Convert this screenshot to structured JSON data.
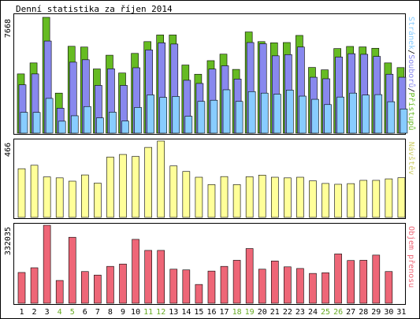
{
  "title": "Denní statistika za říjen 2014",
  "colors": {
    "background": "#ffffff",
    "panel_border": "#000000",
    "hits": "#66bb22",
    "files": "#8888ee",
    "pages": "#88ccff",
    "visits": "#ffff99",
    "kbytes": "#ee6677",
    "weekend_label": "#66aa22",
    "weekday_label": "#000000"
  },
  "chart_data": [
    {
      "type": "bar",
      "panel": "top",
      "ymax_label": "7668",
      "ylim": [
        0,
        7668
      ],
      "legend": {
        "pages": "Stránek",
        "files": "Souborů",
        "hits": "Přístupů",
        "sep": "/"
      },
      "categories": [
        "1",
        "2",
        "3",
        "4",
        "5",
        "6",
        "7",
        "8",
        "9",
        "10",
        "11",
        "12",
        "13",
        "14",
        "15",
        "16",
        "17",
        "18",
        "19",
        "20",
        "21",
        "22",
        "23",
        "24",
        "25",
        "26",
        "27",
        "28",
        "29",
        "30",
        "31"
      ],
      "weekend": [
        "4",
        "5",
        "11",
        "12",
        "18",
        "19",
        "25",
        "26"
      ],
      "series": [
        {
          "key": "hits",
          "values": [
            3920,
            4650,
            7668,
            2650,
            5750,
            5700,
            4250,
            5160,
            3980,
            5280,
            6060,
            6500,
            6500,
            4510,
            3900,
            4800,
            5230,
            4220,
            6700,
            6060,
            5980,
            6000,
            6470,
            4350,
            4190,
            5600,
            5740,
            5710,
            5620,
            4650,
            4340
          ]
        },
        {
          "key": "files",
          "values": [
            3200,
            3920,
            6100,
            1650,
            4700,
            4860,
            3160,
            4260,
            3160,
            4330,
            5510,
            5980,
            5900,
            3500,
            3290,
            4240,
            4460,
            3580,
            6000,
            5920,
            5120,
            5200,
            5700,
            3700,
            3600,
            5040,
            5260,
            5220,
            5080,
            3900,
            3700
          ]
        },
        {
          "key": "pages",
          "values": [
            1380,
            1370,
            2300,
            790,
            1150,
            1760,
            1010,
            1390,
            800,
            1700,
            2530,
            2370,
            2430,
            1120,
            2100,
            2180,
            2870,
            2100,
            2750,
            2650,
            2580,
            2850,
            2450,
            2240,
            1890,
            2390,
            2650,
            2520,
            2550,
            2080,
            1600
          ]
        }
      ]
    },
    {
      "type": "bar",
      "panel": "middle",
      "ymax_label": "466",
      "ylim": [
        0,
        466
      ],
      "legend": {
        "visits": "Návštěv"
      },
      "categories": [
        "1",
        "2",
        "3",
        "4",
        "5",
        "6",
        "7",
        "8",
        "9",
        "10",
        "11",
        "12",
        "13",
        "14",
        "15",
        "16",
        "17",
        "18",
        "19",
        "20",
        "21",
        "22",
        "23",
        "24",
        "25",
        "26",
        "27",
        "28",
        "29",
        "30",
        "31"
      ],
      "series": [
        {
          "key": "visits",
          "values": [
            297,
            318,
            247,
            241,
            221,
            259,
            209,
            368,
            384,
            372,
            427,
            466,
            314,
            280,
            245,
            200,
            249,
            200,
            248,
            258,
            245,
            241,
            245,
            223,
            207,
            202,
            206,
            226,
            226,
            235,
            242
          ]
        }
      ]
    },
    {
      "type": "bar",
      "panel": "bottom",
      "ymax_label": "332035",
      "ylim": [
        0,
        332035
      ],
      "legend": {
        "kbytes": "Objem přenosu"
      },
      "categories": [
        "1",
        "2",
        "3",
        "4",
        "5",
        "6",
        "7",
        "8",
        "9",
        "10",
        "11",
        "12",
        "13",
        "14",
        "15",
        "16",
        "17",
        "18",
        "19",
        "20",
        "21",
        "22",
        "23",
        "24",
        "25",
        "26",
        "27",
        "28",
        "29",
        "30",
        "31"
      ],
      "weekend": [
        "4",
        "5",
        "11",
        "12",
        "18",
        "19",
        "25",
        "26"
      ],
      "series": [
        {
          "key": "kbytes",
          "values": [
            131000,
            151000,
            332035,
            97000,
            281000,
            135000,
            120000,
            157000,
            167000,
            272000,
            225000,
            225000,
            145000,
            142000,
            80000,
            137000,
            157000,
            183000,
            233000,
            145000,
            180000,
            155000,
            148000,
            127000,
            130000,
            210000,
            182000,
            183000,
            205000,
            135000,
            0
          ]
        }
      ]
    }
  ]
}
